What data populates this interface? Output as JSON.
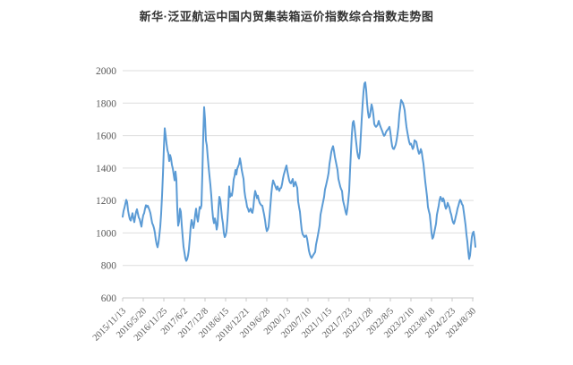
{
  "title": "新华·泛亚航运中国内贸集装箱运价指数综合指数走势图",
  "chart_data": {
    "type": "line",
    "title": "新华·泛亚航运中国内贸集装箱运价指数综合指数走势图",
    "x_tick_labels": [
      "2015/11/13",
      "2016/5/20",
      "2016/11/25",
      "2017/6/2",
      "2017/12/8",
      "2018/6/15",
      "2018/12/21",
      "2019/6/28",
      "2020/1/3",
      "2020/7/10",
      "2021/1/15",
      "2021/7/23",
      "2022/1/28",
      "2022/8/5",
      "2023/2/10",
      "2023/8/18",
      "2024/2/23",
      "2024/8/30"
    ],
    "y_ticks": [
      600,
      800,
      1000,
      1200,
      1400,
      1600,
      1800,
      2000
    ],
    "ylim": [
      600,
      2000
    ],
    "grid": true,
    "legend": "none",
    "line_color": "#5b9bd5",
    "grid_color": "#dedede",
    "axis_color": "#c9c9c9",
    "label_color": "#595959",
    "values": [
      1100,
      1135,
      1155,
      1180,
      1204,
      1190,
      1140,
      1110,
      1085,
      1076,
      1100,
      1122,
      1090,
      1067,
      1100,
      1130,
      1146,
      1120,
      1095,
      1085,
      1060,
      1039,
      1080,
      1110,
      1122,
      1150,
      1171,
      1160,
      1168,
      1155,
      1140,
      1122,
      1090,
      1060,
      1048,
      1030,
      1002,
      960,
      930,
      912,
      940,
      986,
      1040,
      1120,
      1230,
      1360,
      1520,
      1645,
      1600,
      1550,
      1510,
      1490,
      1443,
      1480,
      1460,
      1420,
      1397,
      1360,
      1324,
      1379,
      1330,
      1150,
      1045,
      1070,
      1150,
      1130,
      1050,
      980,
      915,
      880,
      845,
      828,
      838,
      860,
      900,
      965,
      1040,
      1080,
      1060,
      1030,
      1060,
      1113,
      1150,
      1100,
      1070,
      1110,
      1160,
      1150,
      1170,
      1360,
      1600,
      1775,
      1700,
      1570,
      1540,
      1470,
      1407,
      1350,
      1296,
      1230,
      1150,
      1090,
      1060,
      1090,
      1065,
      1021,
      1050,
      1150,
      1223,
      1205,
      1150,
      1094,
      1060,
      1000,
      975,
      985,
      1011,
      1080,
      1168,
      1287,
      1223,
      1241,
      1230,
      1268,
      1330,
      1351,
      1388,
      1360,
      1397,
      1410,
      1425,
      1460,
      1430,
      1388,
      1360,
      1333,
      1260,
      1220,
      1195,
      1160,
      1150,
      1131,
      1140,
      1150,
      1130,
      1124,
      1160,
      1220,
      1259,
      1240,
      1214,
      1230,
      1204,
      1186,
      1177,
      1170,
      1168,
      1140,
      1113,
      1080,
      1039,
      1011,
      1020,
      1039,
      1100,
      1168,
      1240,
      1290,
      1324,
      1310,
      1296,
      1280,
      1268,
      1287,
      1270,
      1259,
      1275,
      1278,
      1300,
      1333,
      1360,
      1379,
      1400,
      1416,
      1380,
      1351,
      1324,
      1310,
      1306,
      1320,
      1333,
      1287,
      1300,
      1315,
      1295,
      1278,
      1195,
      1160,
      1131,
      1070,
      1020,
      993,
      984,
      975,
      982,
      984,
      965,
      930,
      892,
      870,
      855,
      846,
      855,
      865,
      874,
      883,
      929,
      955,
      984,
      1015,
      1048,
      1113,
      1140,
      1168,
      1195,
      1223,
      1268,
      1290,
      1315,
      1340,
      1370,
      1425,
      1460,
      1498,
      1520,
      1535,
      1507,
      1470,
      1443,
      1415,
      1388,
      1333,
      1310,
      1287,
      1270,
      1259,
      1204,
      1180,
      1158,
      1130,
      1113,
      1150,
      1200,
      1260,
      1390,
      1500,
      1610,
      1680,
      1690,
      1655,
      1600,
      1550,
      1500,
      1470,
      1458,
      1500,
      1600,
      1700,
      1790,
      1870,
      1920,
      1928,
      1880,
      1800,
      1745,
      1710,
      1718,
      1755,
      1792,
      1770,
      1730,
      1672,
      1660,
      1654,
      1660,
      1670,
      1691,
      1670,
      1655,
      1640,
      1627,
      1610,
      1599,
      1605,
      1620,
      1630,
      1636,
      1645,
      1654,
      1620,
      1572,
      1535,
      1520,
      1517,
      1530,
      1544,
      1572,
      1610,
      1654,
      1730,
      1774,
      1820,
      1810,
      1801,
      1780,
      1755,
      1700,
      1654,
      1620,
      1590,
      1562,
      1545,
      1550,
      1535,
      1517,
      1530,
      1572,
      1565,
      1562,
      1535,
      1507,
      1488,
      1495,
      1517,
      1500,
      1460,
      1425,
      1370,
      1315,
      1270,
      1223,
      1160,
      1135,
      1113,
      1060,
      1000,
      965,
      975,
      1002,
      1030,
      1057,
      1113,
      1140,
      1168,
      1204,
      1223,
      1210,
      1195,
      1214,
      1200,
      1168,
      1149,
      1160,
      1186,
      1170,
      1158,
      1130,
      1113,
      1085,
      1065,
      1057,
      1075,
      1100,
      1122,
      1150,
      1168,
      1190,
      1204,
      1195,
      1177,
      1170,
      1131,
      1090,
      1048,
      990,
      947,
      885,
      840,
      862,
      920,
      975,
      1000,
      1008,
      970,
      915
    ]
  }
}
